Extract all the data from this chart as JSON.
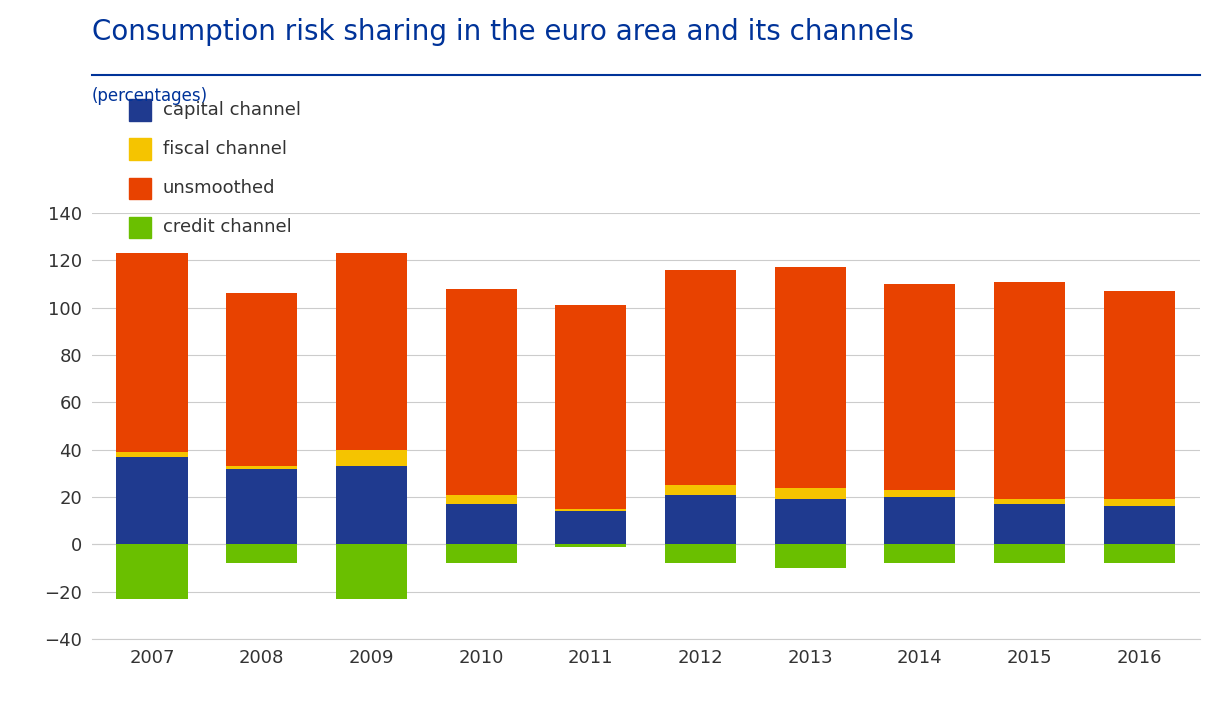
{
  "years": [
    2007,
    2008,
    2009,
    2010,
    2011,
    2012,
    2013,
    2014,
    2015,
    2016
  ],
  "capital_channel": [
    37,
    32,
    33,
    17,
    14,
    21,
    19,
    20,
    17,
    16
  ],
  "fiscal_channel": [
    2,
    1,
    7,
    4,
    1,
    4,
    5,
    3,
    2,
    3
  ],
  "unsmoothed": [
    84,
    73,
    83,
    87,
    86,
    91,
    93,
    87,
    92,
    88
  ],
  "credit_channel": [
    -23,
    -8,
    -23,
    -8,
    -1,
    -8,
    -10,
    -8,
    -8,
    -8
  ],
  "title": "Consumption risk sharing in the euro area and its channels",
  "ylabel": "(percentages)",
  "ylim_min": -40,
  "ylim_max": 140,
  "yticks": [
    -40,
    -20,
    0,
    20,
    40,
    60,
    80,
    100,
    120,
    140
  ],
  "color_capital": "#1f3a8f",
  "color_fiscal": "#f5c400",
  "color_unsmoothed": "#e84200",
  "color_credit": "#6abf00",
  "title_color": "#003399",
  "label_color": "#003399",
  "tick_color": "#333333",
  "background_color": "#ffffff",
  "bar_width": 0.65,
  "title_fontsize": 20,
  "legend_fontsize": 13,
  "tick_fontsize": 13,
  "ylabel_fontsize": 12,
  "legend_labels": [
    "capital channel",
    "fiscal channel",
    "unsmoothed",
    "credit channel"
  ]
}
